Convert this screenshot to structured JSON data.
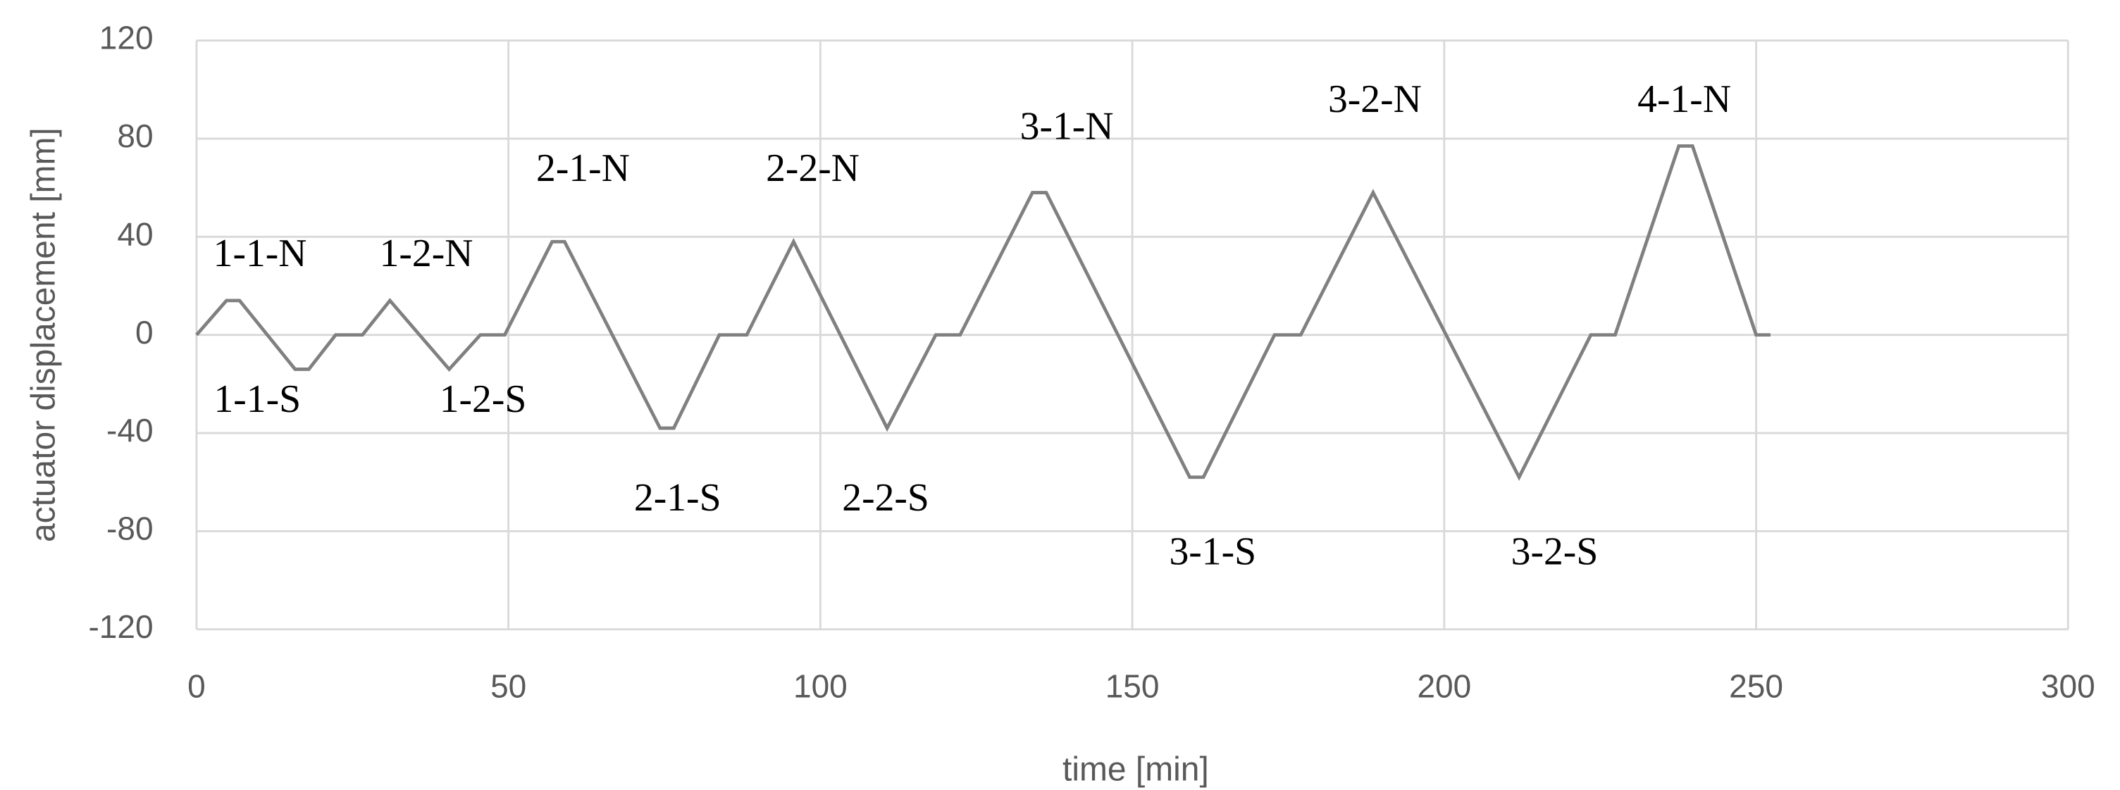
{
  "chart_data": {
    "type": "line",
    "xlabel": "time [min]",
    "ylabel": "actuator displacement [mm]",
    "x": [
      0,
      4.8,
      6.9,
      15.8,
      18,
      22.3,
      26.6,
      31,
      40.5,
      45.5,
      49.4,
      57,
      59,
      74.3,
      76.5,
      83.8,
      88.2,
      95.7,
      110.7,
      118.5,
      122.4,
      134,
      136.2,
      159.2,
      161.4,
      172.8,
      177,
      188.6,
      212,
      223.5,
      227.4,
      237.6,
      239.8,
      250,
      252.3
    ],
    "series": [
      {
        "color": "#808080",
        "values": [
          0,
          14,
          14,
          -14,
          -14,
          0,
          0,
          14,
          -14,
          0,
          0,
          38,
          38,
          -38,
          -38,
          0,
          0,
          38,
          -38,
          0,
          0,
          58,
          58,
          -58,
          -58,
          0,
          0,
          58,
          -58,
          0,
          0,
          77,
          77,
          0,
          0
        ]
      }
    ],
    "xlim": [
      0,
      300
    ],
    "xticks": [
      0,
      50,
      100,
      150,
      200,
      250,
      300
    ],
    "ylim": [
      -120,
      120
    ],
    "yticks": [
      -120,
      -80,
      -40,
      0,
      40,
      80,
      120
    ],
    "grid": true,
    "annotations": [
      "1-1-N",
      "1-1-S",
      "1-2-N",
      "1-2-S",
      "2-1-N",
      "2-1-S",
      "2-2-N",
      "2-2-S",
      "3-1-N",
      "3-1-S",
      "3-2-N",
      "3-2-S",
      "4-1-N"
    ]
  }
}
